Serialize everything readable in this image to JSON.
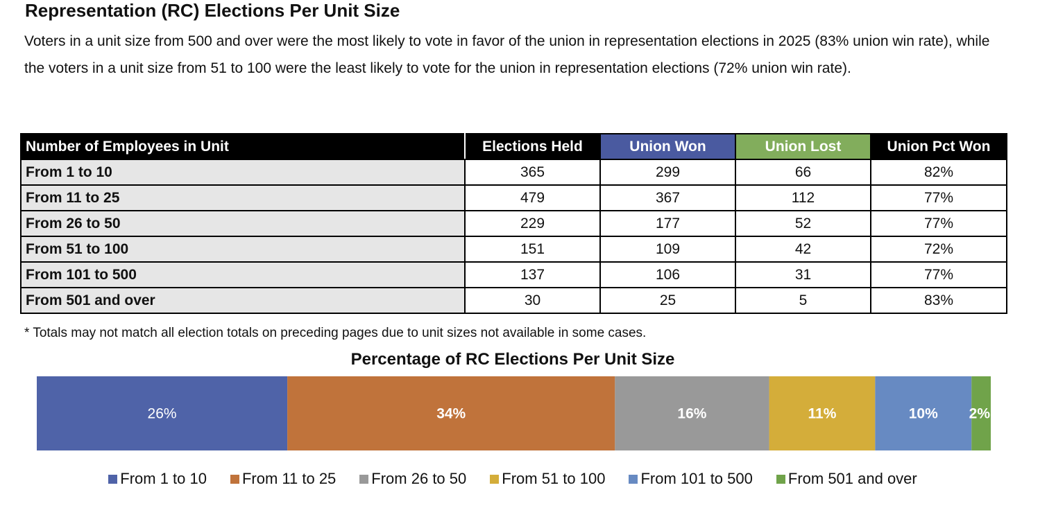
{
  "title": "Representation (RC) Elections Per Unit Size",
  "description": "Voters in a unit size from 500 and over were the most likely to vote in favor of the union in representation elections in 2025 (83% union win rate), while the voters in a unit size from 51 to 100 were the least likely to vote for the union in representation elections (72% union win rate).",
  "table": {
    "headers": [
      "Number of Employees in Unit",
      "Elections Held",
      "Union Won",
      "Union Lost",
      "Union Pct Won"
    ],
    "rows": [
      [
        "From 1 to 10",
        "365",
        "299",
        "66",
        "82%"
      ],
      [
        "From 11 to 25",
        "479",
        "367",
        "112",
        "77%"
      ],
      [
        "From 26 to 50",
        "229",
        "177",
        "52",
        "77%"
      ],
      [
        "From 51 to 100",
        "151",
        "109",
        "42",
        "72%"
      ],
      [
        "From 101 to 500",
        "137",
        "106",
        "31",
        "77%"
      ],
      [
        "From 501 and over",
        "30",
        "25",
        "5",
        "83%"
      ]
    ]
  },
  "footnote": "* Totals may not match all election totals on preceding pages due to unit sizes not available in some cases.",
  "chart_data": {
    "type": "bar",
    "stacked": true,
    "orientation": "horizontal",
    "title": "Percentage of RC Elections Per Unit Size",
    "series": [
      {
        "name": "From 1 to 10",
        "value": 26,
        "label": "26%",
        "color": "#4f63a8"
      },
      {
        "name": "From 11 to 25",
        "value": 34,
        "label": "34%",
        "color": "#c0733b"
      },
      {
        "name": "From 26 to 50",
        "value": 16,
        "label": "16%",
        "color": "#999999"
      },
      {
        "name": "From 51 to 100",
        "value": 11,
        "label": "11%",
        "color": "#d4ad3a"
      },
      {
        "name": "From 101 to 500",
        "value": 10,
        "label": "10%",
        "color": "#678ac2"
      },
      {
        "name": "From 501 and over",
        "value": 2,
        "label": "2%",
        "color": "#70a34a"
      }
    ],
    "legend": "bottom"
  }
}
